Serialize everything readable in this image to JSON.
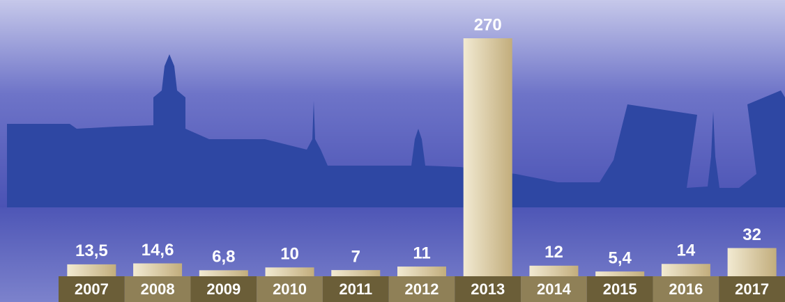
{
  "chart_data": {
    "type": "bar",
    "categories": [
      "2007",
      "2008",
      "2009",
      "2010",
      "2011",
      "2012",
      "2013",
      "2014",
      "2015",
      "2016",
      "2017"
    ],
    "values": [
      13.5,
      14.6,
      6.8,
      10,
      7,
      11,
      270,
      12,
      5.4,
      14,
      32
    ],
    "value_labels": [
      "13,5",
      "14,6",
      "6,8",
      "10",
      "7",
      "11",
      "270",
      "12",
      "5,4",
      "14",
      "32"
    ],
    "band_colors": [
      "#6b5e38",
      "#8f8057"
    ]
  }
}
